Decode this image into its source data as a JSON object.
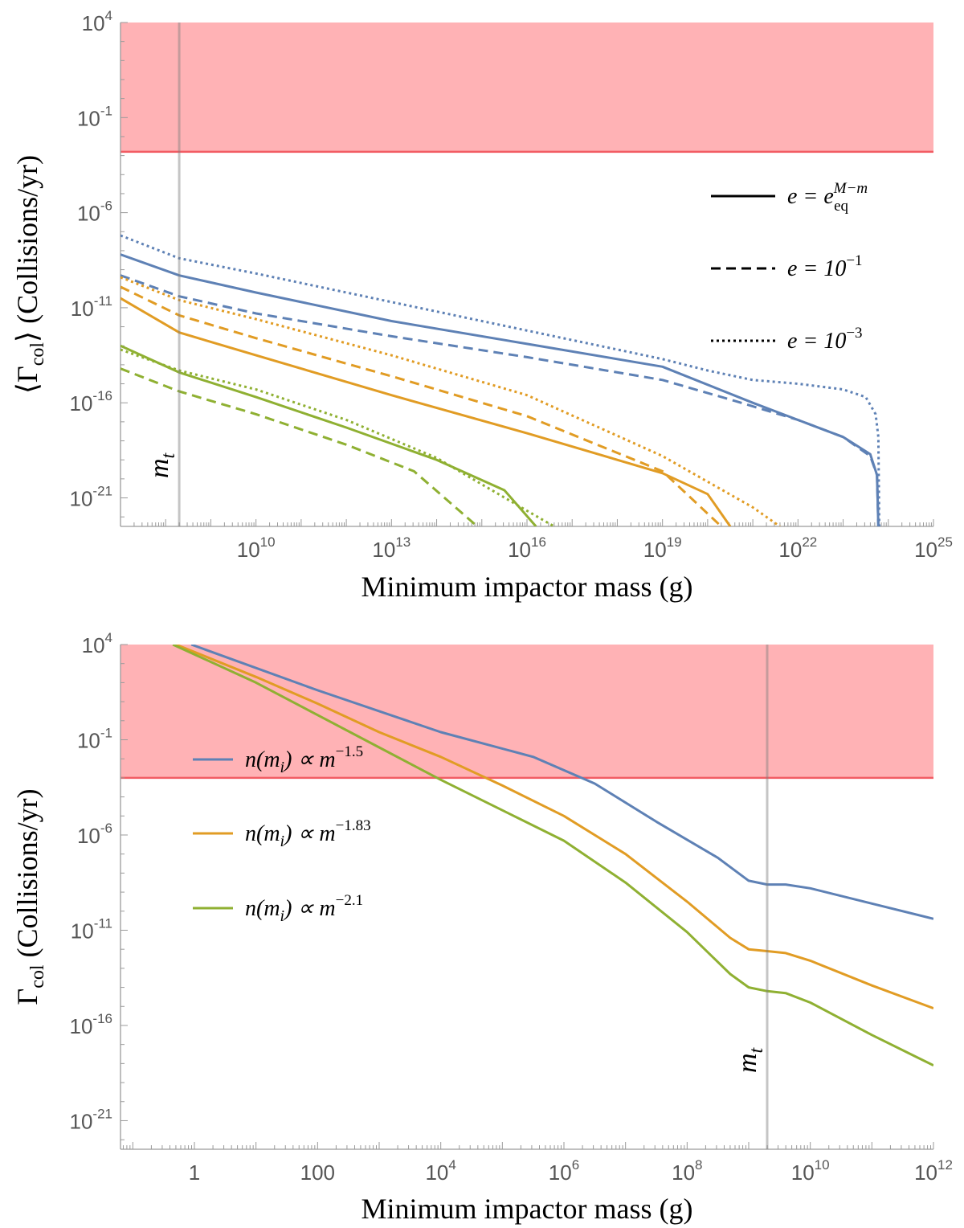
{
  "chart_data": [
    {
      "type": "line",
      "title": "",
      "xlabel": "Minimum impactor mass (g)",
      "ylabel": "⟨Γcol⟩ (Collisions/yr)",
      "ylabel_parts": {
        "open": "⟨Γ",
        "sub": "col",
        "close": "⟩ (Collisions/yr)"
      },
      "xscale": "log",
      "yscale": "log",
      "xlim_log10": [
        7,
        25
      ],
      "ylim_log10": [
        -22.5,
        4
      ],
      "xticks": [
        {
          "base": "10",
          "exp": "10",
          "log10": 10
        },
        {
          "base": "10",
          "exp": "13",
          "log10": 13
        },
        {
          "base": "10",
          "exp": "16",
          "log10": 16
        },
        {
          "base": "10",
          "exp": "19",
          "log10": 19
        },
        {
          "base": "10",
          "exp": "22",
          "log10": 22
        },
        {
          "base": "10",
          "exp": "25",
          "log10": 25
        }
      ],
      "yticks": [
        {
          "base": "10",
          "exp": "4",
          "log10": 4
        },
        {
          "base": "10",
          "exp": "-1",
          "log10": -1
        },
        {
          "base": "10",
          "exp": "-6",
          "log10": -6
        },
        {
          "base": "10",
          "exp": "-11",
          "log10": -11
        },
        {
          "base": "10",
          "exp": "-16",
          "log10": -16
        },
        {
          "base": "10",
          "exp": "-21",
          "log10": -21
        }
      ],
      "forbidden_band_log10": [
        -2.8,
        4
      ],
      "band_color": "#ff7f84",
      "band_line_color": "#f25c63",
      "vline": {
        "label": "m",
        "sub": "t",
        "x_log10": 8.3,
        "label_side": "left"
      },
      "legend": {
        "position": "right",
        "entries": [
          {
            "style": "solid",
            "text_main": "e = e",
            "text_sub": "eq",
            "text_sup": "M−m"
          },
          {
            "style": "dashed",
            "text_main": "e = 10",
            "text_sup": "−1"
          },
          {
            "style": "dotted",
            "text_main": "e = 10",
            "text_sup": "−3"
          }
        ]
      },
      "series": [
        {
          "name": "blue solid",
          "color": "#5e81b5",
          "dash": "solid",
          "points": [
            [
              7,
              -8.2
            ],
            [
              8.3,
              -9.3
            ],
            [
              10,
              -10.2
            ],
            [
              13,
              -11.7
            ],
            [
              16,
              -12.9
            ],
            [
              19,
              -14.1
            ],
            [
              21,
              -16.0
            ],
            [
              22,
              -16.9
            ],
            [
              23,
              -17.8
            ],
            [
              23.6,
              -18.7
            ],
            [
              23.75,
              -19.8
            ],
            [
              23.78,
              -22.5
            ]
          ]
        },
        {
          "name": "blue dashed",
          "color": "#5e81b5",
          "dash": "dashed",
          "points": [
            [
              7,
              -9.3
            ],
            [
              8.3,
              -10.4
            ],
            [
              10,
              -11.3
            ],
            [
              13,
              -12.5
            ],
            [
              16,
              -13.6
            ],
            [
              19,
              -14.8
            ],
            [
              20.6,
              -15.9
            ],
            [
              22,
              -16.9
            ],
            [
              23,
              -17.8
            ],
            [
              23.6,
              -18.8
            ],
            [
              23.75,
              -19.8
            ],
            [
              23.78,
              -22.5
            ]
          ]
        },
        {
          "name": "blue dotted",
          "color": "#5e81b5",
          "dash": "dotted",
          "points": [
            [
              7,
              -7.2
            ],
            [
              8.3,
              -8.4
            ],
            [
              10,
              -9.2
            ],
            [
              13,
              -10.7
            ],
            [
              16,
              -12.2
            ],
            [
              19,
              -13.7
            ],
            [
              20,
              -14.3
            ],
            [
              21,
              -14.8
            ],
            [
              22,
              -15.0
            ],
            [
              23,
              -15.3
            ],
            [
              23.5,
              -15.7
            ],
            [
              23.72,
              -16.6
            ],
            [
              23.78,
              -17.8
            ],
            [
              23.8,
              -22.5
            ]
          ]
        },
        {
          "name": "orange solid",
          "color": "#e19c24",
          "dash": "solid",
          "points": [
            [
              7,
              -10.5
            ],
            [
              8.3,
              -12.3
            ],
            [
              10,
              -13.5
            ],
            [
              13,
              -15.6
            ],
            [
              16,
              -17.6
            ],
            [
              19,
              -19.7
            ],
            [
              20,
              -20.8
            ],
            [
              20.5,
              -22.5
            ]
          ]
        },
        {
          "name": "orange dashed",
          "color": "#e19c24",
          "dash": "dashed",
          "points": [
            [
              7,
              -9.9
            ],
            [
              8.3,
              -11.4
            ],
            [
              10,
              -12.6
            ],
            [
              13,
              -14.6
            ],
            [
              16,
              -16.7
            ],
            [
              19,
              -19.6
            ],
            [
              20.3,
              -22.5
            ]
          ]
        },
        {
          "name": "orange dotted",
          "color": "#e19c24",
          "dash": "dotted",
          "points": [
            [
              7,
              -9.4
            ],
            [
              8.3,
              -10.6
            ],
            [
              10,
              -11.6
            ],
            [
              13,
              -13.5
            ],
            [
              16,
              -15.6
            ],
            [
              19,
              -18.8
            ],
            [
              21,
              -21.5
            ],
            [
              21.6,
              -22.5
            ]
          ]
        },
        {
          "name": "green solid",
          "color": "#8fb032",
          "dash": "solid",
          "points": [
            [
              7,
              -13.0
            ],
            [
              8.3,
              -14.4
            ],
            [
              10,
              -15.7
            ],
            [
              12,
              -17.3
            ],
            [
              14,
              -19.0
            ],
            [
              15.5,
              -20.6
            ],
            [
              16.2,
              -22.5
            ]
          ]
        },
        {
          "name": "green dashed",
          "color": "#8fb032",
          "dash": "dashed",
          "points": [
            [
              7,
              -14.2
            ],
            [
              8.3,
              -15.4
            ],
            [
              10,
              -16.6
            ],
            [
              12,
              -18.2
            ],
            [
              13.5,
              -19.6
            ],
            [
              14.9,
              -22.5
            ]
          ]
        },
        {
          "name": "green dotted",
          "color": "#8fb032",
          "dash": "dotted",
          "points": [
            [
              7,
              -13.2
            ],
            [
              8.3,
              -14.3
            ],
            [
              10,
              -15.3
            ],
            [
              12,
              -16.9
            ],
            [
              14,
              -18.9
            ],
            [
              15.8,
              -21.4
            ],
            [
              16.6,
              -22.5
            ]
          ]
        }
      ]
    },
    {
      "type": "line",
      "title": "",
      "xlabel": "Minimum impactor mass (g)",
      "ylabel": "Γcol (Collisions/yr)",
      "ylabel_parts": {
        "open": "Γ",
        "sub": "col",
        "close": " (Collisions/yr)"
      },
      "xscale": "log",
      "yscale": "log",
      "xlim_log10": [
        -1.2,
        12
      ],
      "ylim_log10": [
        -22.5,
        4
      ],
      "xticks": [
        {
          "base": "1",
          "exp": "",
          "log10": 0
        },
        {
          "base": "100",
          "exp": "",
          "log10": 2
        },
        {
          "base": "10",
          "exp": "4",
          "log10": 4
        },
        {
          "base": "10",
          "exp": "6",
          "log10": 6
        },
        {
          "base": "10",
          "exp": "8",
          "log10": 8
        },
        {
          "base": "10",
          "exp": "10",
          "log10": 10
        },
        {
          "base": "10",
          "exp": "12",
          "log10": 12
        }
      ],
      "yticks": [
        {
          "base": "10",
          "exp": "4",
          "log10": 4
        },
        {
          "base": "10",
          "exp": "-1",
          "log10": -1
        },
        {
          "base": "10",
          "exp": "-6",
          "log10": -6
        },
        {
          "base": "10",
          "exp": "-11",
          "log10": -11
        },
        {
          "base": "10",
          "exp": "-16",
          "log10": -16
        },
        {
          "base": "10",
          "exp": "-21",
          "log10": -21
        }
      ],
      "forbidden_band_log10": [
        -3.0,
        4
      ],
      "band_color": "#ff7f84",
      "band_line_color": "#f25c63",
      "vline": {
        "label": "m",
        "sub": "t",
        "x_log10": 9.3,
        "label_side": "left"
      },
      "legend": {
        "position": "left",
        "entries": [
          {
            "style": "solid",
            "color": "#5e81b5",
            "text_main": "n(m",
            "text_sub": "i",
            "text_after": ") ∝ m",
            "text_sup": "−1.5"
          },
          {
            "style": "solid",
            "color": "#e19c24",
            "text_main": "n(m",
            "text_sub": "i",
            "text_after": ") ∝ m",
            "text_sup": "−1.83"
          },
          {
            "style": "solid",
            "color": "#8fb032",
            "text_main": "n(m",
            "text_sub": "i",
            "text_after": ") ∝ m",
            "text_sup": "−2.1"
          }
        ]
      },
      "series": [
        {
          "name": "n(m_i) ∝ m^-1.5",
          "color": "#5e81b5",
          "dash": "solid",
          "points": [
            [
              -0.05,
              4
            ],
            [
              2,
              1.6
            ],
            [
              4,
              -0.6
            ],
            [
              5.5,
              -1.9
            ],
            [
              6.5,
              -3.3
            ],
            [
              7.5,
              -5.3
            ],
            [
              8.5,
              -7.2
            ],
            [
              9,
              -8.4
            ],
            [
              9.3,
              -8.6
            ],
            [
              9.6,
              -8.6
            ],
            [
              10,
              -8.8
            ],
            [
              11,
              -9.6
            ],
            [
              12,
              -10.4
            ]
          ]
        },
        {
          "name": "n(m_i) ∝ m^-1.83",
          "color": "#e19c24",
          "dash": "solid",
          "points": [
            [
              -0.3,
              4
            ],
            [
              1,
              2.3
            ],
            [
              2,
              0.9
            ],
            [
              3,
              -0.6
            ],
            [
              4,
              -1.9
            ],
            [
              5,
              -3.4
            ],
            [
              6,
              -5.0
            ],
            [
              7,
              -7.0
            ],
            [
              8,
              -9.5
            ],
            [
              8.7,
              -11.4
            ],
            [
              9,
              -12.0
            ],
            [
              9.3,
              -12.1
            ],
            [
              9.6,
              -12.2
            ],
            [
              10,
              -12.6
            ],
            [
              11,
              -13.9
            ],
            [
              12,
              -15.1
            ]
          ]
        },
        {
          "name": "n(m_i) ∝ m^-2.1",
          "color": "#8fb032",
          "dash": "solid",
          "points": [
            [
              -0.35,
              4
            ],
            [
              1,
              2.0
            ],
            [
              2,
              0.3
            ],
            [
              3,
              -1.4
            ],
            [
              4,
              -3.1
            ],
            [
              5,
              -4.7
            ],
            [
              6,
              -6.3
            ],
            [
              7,
              -8.5
            ],
            [
              8,
              -11.1
            ],
            [
              8.7,
              -13.3
            ],
            [
              9,
              -14.0
            ],
            [
              9.3,
              -14.2
            ],
            [
              9.6,
              -14.3
            ],
            [
              10,
              -14.8
            ],
            [
              11,
              -16.5
            ],
            [
              12,
              -18.1
            ]
          ]
        }
      ]
    }
  ]
}
